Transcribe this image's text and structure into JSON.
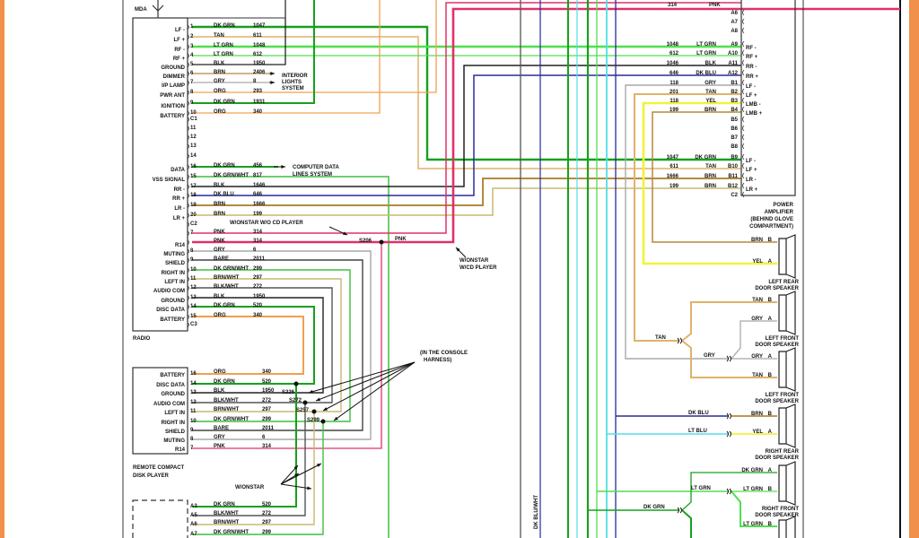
{
  "wire_colors": {
    "DK GRN": "#17a01e",
    "LT GRN": "#4fe04f",
    "TAN": "#e0b26a",
    "BLK": "#222222",
    "BRN": "#b48a3c",
    "GRY": "#a9a9a9",
    "ORG": "#f0a050",
    "DK GRN/WHT": "#3fbf3f",
    "DK BLU": "#2a2a9a",
    "PNK": "#e0306a",
    "BARE": "#444444",
    "BRN/WHT": "#c8b870",
    "BLK/WHT": "#555555",
    "YEL": "#f2f23a",
    "LT BLU": "#4fe0e8",
    "border_orange": "#f0904a"
  },
  "radio": {
    "label": "RADIO",
    "antenna_label": "MDA",
    "pins": [
      {
        "pin": "1",
        "color": "DK GRN",
        "circuit": "1047",
        "func": "LF -"
      },
      {
        "pin": "2",
        "color": "TAN",
        "circuit": "611",
        "func": "LF +"
      },
      {
        "pin": "3",
        "color": "LT GRN",
        "circuit": "1048",
        "func": "RF -"
      },
      {
        "pin": "4",
        "color": "LT GRN",
        "circuit": "612",
        "func": "RF +"
      },
      {
        "pin": "5",
        "color": "BLK",
        "circuit": "1950",
        "func": "GROUND"
      },
      {
        "pin": "6",
        "color": "BRN",
        "circuit": "2406",
        "func": "DIMMER"
      },
      {
        "pin": "7",
        "color": "GRY",
        "circuit": "8",
        "func": "I/P LAMP"
      },
      {
        "pin": "8",
        "color": "ORG",
        "circuit": "293",
        "func": "PWR ANT"
      },
      {
        "pin": "9",
        "color": "DK GRN",
        "circuit": "1931",
        "func": "IGNITION"
      },
      {
        "pin": "10",
        "color": "ORG",
        "circuit": "340",
        "func": "BATTERY"
      },
      {
        "pin": "C1",
        "color": "",
        "circuit": "",
        "func": ""
      },
      {
        "pin": "11",
        "color": "",
        "circuit": "",
        "func": ""
      },
      {
        "pin": "12",
        "color": "",
        "circuit": "",
        "func": ""
      },
      {
        "pin": "13",
        "color": "",
        "circuit": "",
        "func": ""
      },
      {
        "pin": "14",
        "color": "",
        "circuit": "",
        "func": ""
      },
      {
        "pin": "16",
        "color": "DK GRN",
        "circuit": "456",
        "func": "DATA"
      },
      {
        "pin": "15",
        "color": "DK GRN/WHT",
        "circuit": "817",
        "func": "VSS SIGNAL"
      },
      {
        "pin": "17",
        "color": "BLK",
        "circuit": "1646",
        "func": "RR -"
      },
      {
        "pin": "18",
        "color": "DK BLU",
        "circuit": "646",
        "func": "RR +"
      },
      {
        "pin": "19",
        "color": "BRN",
        "circuit": "1666",
        "func": "LR -"
      },
      {
        "pin": "20",
        "color": "BRN",
        "circuit": "199",
        "func": "LR +"
      },
      {
        "pin": "C2",
        "color": "",
        "circuit": "",
        "func": ""
      },
      {
        "pin": "7",
        "color": "PNK",
        "circuit": "314",
        "func": ""
      },
      {
        "pin": "",
        "color": "PNK",
        "circuit": "314",
        "func": "R14"
      },
      {
        "pin": "8",
        "color": "GRY",
        "circuit": "6",
        "func": "MUTING"
      },
      {
        "pin": "9",
        "color": "BARE",
        "circuit": "2011",
        "func": "SHIELD"
      },
      {
        "pin": "10",
        "color": "DK GRN/WHT",
        "circuit": "299",
        "func": "RIGHT IN"
      },
      {
        "pin": "11",
        "color": "BRN/WHT",
        "circuit": "297",
        "func": "LEFT IN"
      },
      {
        "pin": "12",
        "color": "BLK/WHT",
        "circuit": "272",
        "func": "AUDIO COM"
      },
      {
        "pin": "13",
        "color": "BLK",
        "circuit": "1950",
        "func": "GROUND"
      },
      {
        "pin": "14",
        "color": "DK GRN",
        "circuit": "520",
        "func": "DISC DATA"
      },
      {
        "pin": "15",
        "color": "ORG",
        "circuit": "340",
        "func": "BATTERY"
      },
      {
        "pin": "C3",
        "color": "",
        "circuit": "",
        "func": ""
      }
    ]
  },
  "annotations": {
    "interior_lights": [
      "INTERIOR",
      "LIGHTS",
      "SYSTEM"
    ],
    "computer_data": [
      "COMPUTER DATA",
      "LINES SYSTEM"
    ],
    "onstar_no_cd": "W/ONSTAR W/O CD PLAYER",
    "splice_main": "S206",
    "pnk_label": "PNK",
    "onstar_cd": [
      "W/ONSTAR",
      "W/CD PLAYER"
    ],
    "console_harness": [
      "(IN THE CONSOLE",
      "HARNESS)"
    ],
    "splices": [
      "S226",
      "S272",
      "S257",
      "S299"
    ],
    "onstar": "W/ONSTAR",
    "vertical_wire": "DK BLU/WHT"
  },
  "remote_cd": {
    "label": [
      "REMOTE COMPACT",
      "DISK PLAYER"
    ],
    "pins": [
      {
        "pin": "16",
        "color": "ORG",
        "circuit": "340",
        "func": "BATTERY"
      },
      {
        "pin": "14",
        "color": "DK GRN",
        "circuit": "520",
        "func": "DISC DATA"
      },
      {
        "pin": "13",
        "color": "BLK",
        "circuit": "1950",
        "func": "GROUND"
      },
      {
        "pin": "12",
        "color": "BLK/WHT",
        "circuit": "272",
        "func": "AUDIO COM"
      },
      {
        "pin": "11",
        "color": "BRN/WHT",
        "circuit": "297",
        "func": "LEFT IN"
      },
      {
        "pin": "10",
        "color": "DK GRN/WHT",
        "circuit": "299",
        "func": "RIGHT IN"
      },
      {
        "pin": "9",
        "color": "BARE",
        "circuit": "2011",
        "func": "SHIELD"
      },
      {
        "pin": "8",
        "color": "GRY",
        "circuit": "6",
        "func": "MUTING"
      },
      {
        "pin": "7",
        "color": "PNK",
        "circuit": "314",
        "func": "R14"
      }
    ]
  },
  "onstar_module": {
    "pins": [
      {
        "pin": "A3",
        "color": "DK GRN",
        "circuit": "520"
      },
      {
        "pin": "A5",
        "color": "BLK/WHT",
        "circuit": "272"
      },
      {
        "pin": "A6",
        "color": "BRN/WHT",
        "circuit": "297"
      },
      {
        "pin": "A7",
        "color": "DK GRN/WHT",
        "circuit": "299"
      }
    ]
  },
  "amplifier": {
    "label": [
      "POWER",
      "AMPLIFIER",
      "(BEHIND GLOVE",
      "COMPARTMENT)"
    ],
    "top_wire": {
      "circuit": "314",
      "color": "PNK"
    },
    "pins": [
      {
        "pin": "A6",
        "circuit": "",
        "color": "",
        "func": ""
      },
      {
        "pin": "A7",
        "circuit": "",
        "color": "",
        "func": ""
      },
      {
        "pin": "A8",
        "circuit": "",
        "color": "",
        "func": ""
      },
      {
        "pin": "A9",
        "circuit": "1048",
        "color": "LT GRN",
        "func": "RF -"
      },
      {
        "pin": "A10",
        "circuit": "612",
        "color": "LT GRN",
        "func": "RF +"
      },
      {
        "pin": "A11",
        "circuit": "1046",
        "color": "BLK",
        "func": "RR -"
      },
      {
        "pin": "A12",
        "circuit": "646",
        "color": "DK BLU",
        "func": "RR +"
      },
      {
        "pin": "B1",
        "circuit": "118",
        "color": "GRY",
        "func": "LF -"
      },
      {
        "pin": "B2",
        "circuit": "201",
        "color": "TAN",
        "func": "LF +"
      },
      {
        "pin": "B3",
        "circuit": "118",
        "color": "YEL",
        "func": "LMB -"
      },
      {
        "pin": "B4",
        "circuit": "199",
        "color": "BRN",
        "func": "LMB +"
      },
      {
        "pin": "B5",
        "circuit": "",
        "color": "",
        "func": ""
      },
      {
        "pin": "B6",
        "circuit": "",
        "color": "",
        "func": ""
      },
      {
        "pin": "B7",
        "circuit": "",
        "color": "",
        "func": ""
      },
      {
        "pin": "B8",
        "circuit": "",
        "color": "",
        "func": ""
      },
      {
        "pin": "B9",
        "circuit": "1047",
        "color": "DK GRN",
        "func": "LF -"
      },
      {
        "pin": "B10",
        "circuit": "611",
        "color": "TAN",
        "func": "LF +"
      },
      {
        "pin": "B11",
        "circuit": "1666",
        "color": "BRN",
        "func": "LR -"
      },
      {
        "pin": "B12",
        "circuit": "199",
        "color": "BRN",
        "func": "LR +"
      },
      {
        "pin": "C2",
        "circuit": "",
        "color": "",
        "func": ""
      }
    ]
  },
  "speakers": [
    {
      "name": [
        "LEFT REAR",
        "DOOR SPEAKER"
      ],
      "wires": [
        {
          "color": "BRN",
          "pin": "B"
        },
        {
          "color": "YEL",
          "pin": "A"
        }
      ]
    },
    {
      "name": [
        "LEFT FRONT",
        "DOOR SPEAKER"
      ],
      "wires": [
        {
          "color": "TAN",
          "pin": "B"
        },
        {
          "color": "GRY",
          "pin": "A"
        }
      ]
    },
    {
      "name": [
        "LEFT FRONT",
        "DOOR SPEAKER"
      ],
      "wires": [
        {
          "color": "GRY",
          "pin": "A"
        },
        {
          "color": "TAN",
          "pin": "B"
        }
      ]
    },
    {
      "name": [
        "RIGHT REAR",
        "DOOR SPEAKER"
      ],
      "wires": [
        {
          "color": "BRN",
          "pin": "B"
        },
        {
          "color": "YEL",
          "pin": "A"
        }
      ]
    },
    {
      "name": [
        "RIGHT FRONT",
        "DOOR SPEAKER"
      ],
      "wires": [
        {
          "color": "DK GRN",
          "pin": "A"
        },
        {
          "color": "LT GRN",
          "pin": "B"
        }
      ]
    },
    {
      "name": [],
      "wires": [
        {
          "color": "LT GRN",
          "pin": "B"
        }
      ]
    }
  ],
  "speaker_feed_labels": [
    "TAN",
    "GRY",
    "DK BLU",
    "LT BLU",
    "LT GRN",
    "DK GRN"
  ]
}
